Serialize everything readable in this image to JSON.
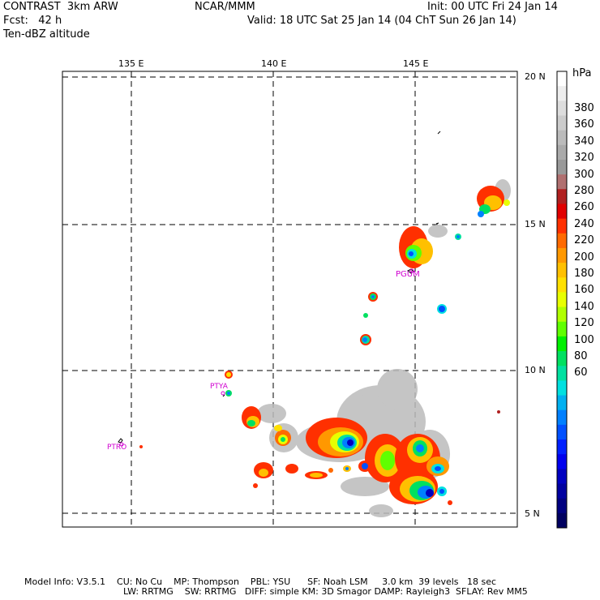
{
  "header": {
    "model": "CONTRAST  3km ARW",
    "org": "NCAR/MMM",
    "init": "Init: 00 UTC Fri 24 Jan 14",
    "fcst": "Fcst:   42 h",
    "valid": "Valid: 18 UTC Sat 25 Jan 14 (04 ChT Sun 26 Jan 14)",
    "field": "Ten-dBZ altitude"
  },
  "map": {
    "lon_labels": [
      "135 E",
      "140 E",
      "145 E"
    ],
    "lat_labels": [
      "20 N",
      "15 N",
      "10 N",
      "5 N"
    ],
    "stations": [
      "PGUM",
      "PTYA",
      "PTRO"
    ]
  },
  "colorbar": {
    "unit": "hPa",
    "labels": [
      "380",
      "360",
      "340",
      "320",
      "300",
      "280",
      "260",
      "240",
      "220",
      "200",
      "180",
      "160",
      "140",
      "120",
      "100",
      "80",
      "60"
    ],
    "colors": [
      "#ffffff",
      "#eeeeee",
      "#dddddd",
      "#cccccc",
      "#bbbbbb",
      "#aaaaaa",
      "#999999",
      "#b07070",
      "#b02020",
      "#e00000",
      "#ff3000",
      "#ff6a00",
      "#ff9800",
      "#ffc000",
      "#ffe000",
      "#e8ff00",
      "#b0ff00",
      "#60ff00",
      "#00f000",
      "#00e060",
      "#00e0a0",
      "#00e0e0",
      "#00b0f0",
      "#0080ff",
      "#0050ff",
      "#0020ff",
      "#0000ee",
      "#0000c0",
      "#0000a0",
      "#000080",
      "#000060"
    ]
  },
  "footer": {
    "line1": "Model Info: V3.5.1    CU: No Cu    MP: Thompson    PBL: YSU      SF: Noah LSM     3.0 km  39 levels   18 sec",
    "line2": "LW: RRTMG    SW: RRTMG   DIFF: simple KM: 3D Smagor DAMP: Rayleigh3  SFLAY: Rev MM5"
  }
}
